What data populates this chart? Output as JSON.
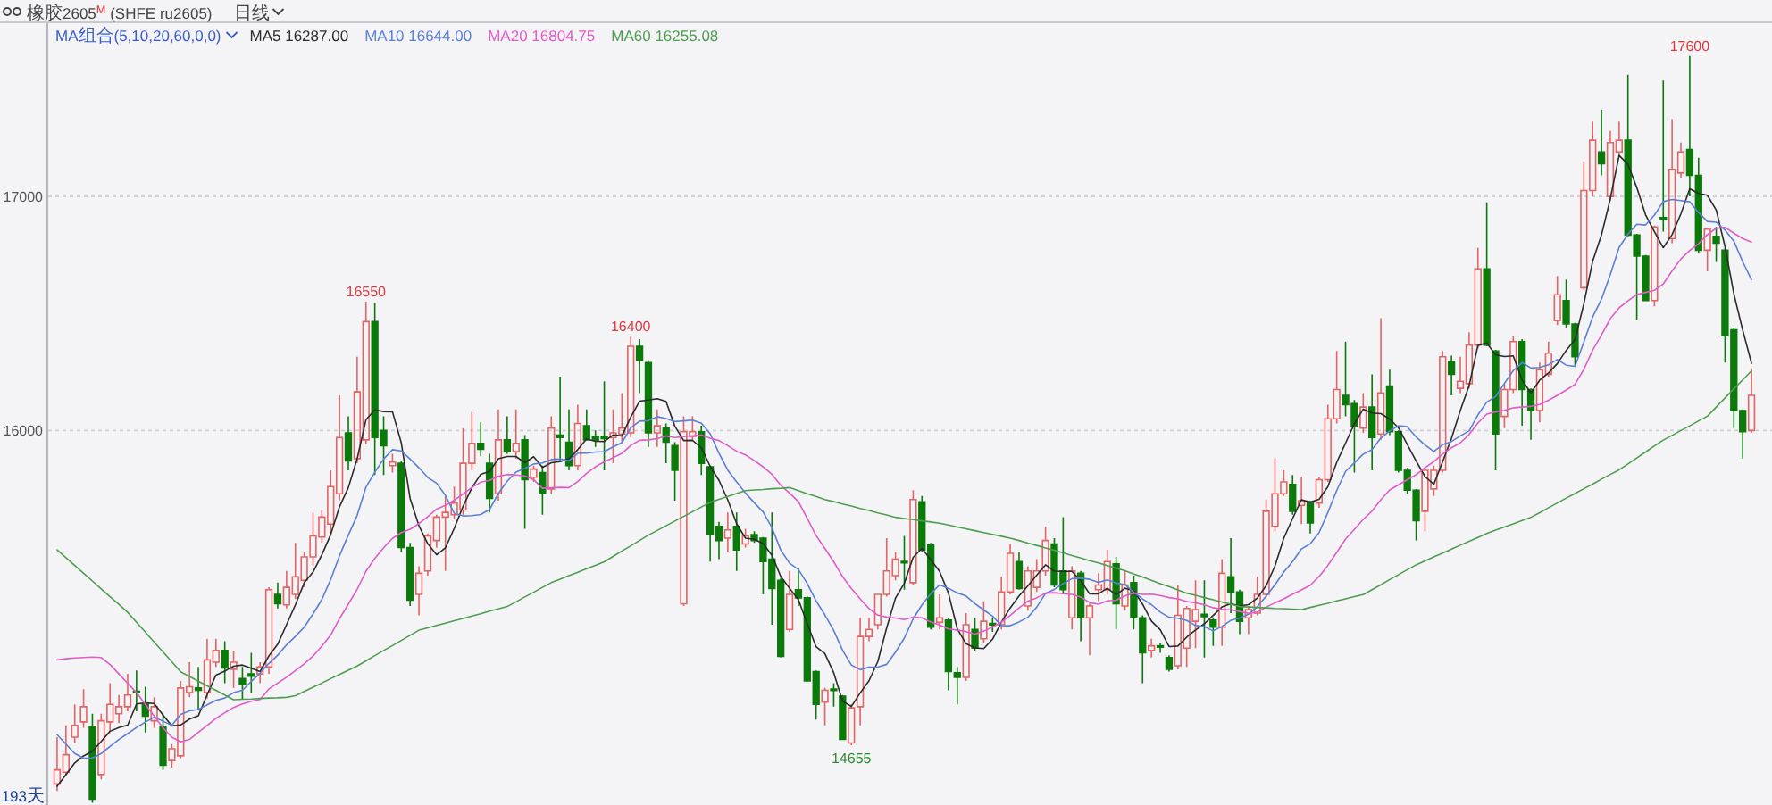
{
  "chart_data": {
    "type": "candlestick",
    "title": "橡胶2605$^{M}$ (SHFE ru2605)",
    "subtitle": "日线",
    "legend_title": "MA组合(5,10,20,60,0,0)",
    "legend": "top left",
    "grid": "y",
    "tick_labels": "y",
    "ylim": [
      14400,
      17740
    ],
    "yticks": [
      16000,
      17000
    ],
    "categories": [
      null,
      null,
      null,
      null,
      null,
      null,
      null,
      null,
      null,
      null,
      null,
      null,
      null,
      null,
      null,
      null,
      null,
      null,
      null,
      null,
      null,
      null,
      null,
      null,
      null,
      null,
      null,
      null,
      null,
      null,
      null,
      null,
      null,
      null,
      null,
      null,
      null,
      null,
      null,
      null,
      null,
      null,
      null,
      null,
      null,
      null,
      null,
      null,
      null,
      null,
      null,
      null,
      null,
      null,
      null,
      null,
      null,
      null,
      null,
      null,
      null,
      null,
      null,
      null,
      null,
      null,
      null,
      null,
      null,
      null,
      null,
      null,
      null,
      null,
      null,
      null,
      null,
      null,
      null,
      null,
      null,
      null,
      null,
      null,
      null,
      null,
      null,
      null,
      null,
      null,
      null,
      null,
      null,
      null,
      null,
      null,
      null,
      null,
      null,
      null,
      null,
      null,
      null,
      null,
      null,
      null,
      null,
      null,
      null,
      null,
      null,
      null,
      null,
      null,
      null,
      null,
      null,
      null,
      null,
      null,
      null,
      null,
      null,
      null,
      null,
      null,
      null,
      null,
      null,
      null,
      null,
      null,
      null,
      null,
      null,
      null,
      null,
      null,
      null,
      null,
      null,
      null,
      null,
      null,
      null,
      null,
      null,
      null,
      null,
      null,
      null,
      null,
      null,
      null,
      null,
      null,
      null,
      null,
      null,
      null,
      null,
      null,
      null,
      null,
      null,
      null,
      null,
      null,
      null,
      null,
      null,
      null,
      null,
      null,
      null,
      null,
      null,
      null,
      null,
      null,
      null,
      null,
      null,
      null,
      null,
      null,
      null,
      null,
      null,
      null,
      null,
      null,
      null
    ],
    "ohlc": [
      [
        14490,
        14690,
        14460,
        14550
      ],
      [
        14540,
        14740,
        14525,
        14615
      ],
      [
        14690,
        14830,
        14665,
        14740
      ],
      [
        14755,
        14895,
        14730,
        14820
      ],
      [
        14735,
        14790,
        14410,
        14425
      ],
      [
        14530,
        14790,
        14510,
        14760
      ],
      [
        14755,
        14920,
        14715,
        14830
      ],
      [
        14790,
        14870,
        14750,
        14820
      ],
      [
        14820,
        14960,
        14800,
        14870
      ],
      [
        14885,
        14975,
        14800,
        14880
      ],
      [
        14830,
        14905,
        14710,
        14780
      ],
      [
        14760,
        14860,
        14730,
        14820
      ],
      [
        14735,
        14790,
        14550,
        14570
      ],
      [
        14590,
        14660,
        14560,
        14640
      ],
      [
        14610,
        14930,
        14600,
        14900
      ],
      [
        14880,
        15010,
        14860,
        14905
      ],
      [
        14900,
        14990,
        14810,
        14890
      ],
      [
        14880,
        15110,
        14855,
        15020
      ],
      [
        15010,
        15110,
        14990,
        15060
      ],
      [
        15060,
        15100,
        14920,
        14985
      ],
      [
        14980,
        15060,
        14900,
        15010
      ],
      [
        14940,
        14990,
        14850,
        14915
      ],
      [
        14960,
        15050,
        14880,
        14950
      ],
      [
        14960,
        15010,
        14920,
        14990
      ],
      [
        14990,
        15330,
        14960,
        15320
      ],
      [
        15300,
        15350,
        15240,
        15260
      ],
      [
        15255,
        15400,
        15240,
        15330
      ],
      [
        15300,
        15520,
        15280,
        15375
      ],
      [
        15360,
        15480,
        15330,
        15460
      ],
      [
        15460,
        15650,
        15420,
        15550
      ],
      [
        15545,
        15660,
        15520,
        15630
      ],
      [
        15600,
        15830,
        15560,
        15760
      ],
      [
        15730,
        16150,
        15700,
        15970
      ],
      [
        15990,
        16060,
        15830,
        15870
      ],
      [
        15880,
        16315,
        15860,
        16165
      ],
      [
        15960,
        16550,
        15940,
        16465
      ],
      [
        16465,
        16545,
        15810,
        15970
      ],
      [
        16000,
        16060,
        15810,
        15935
      ],
      [
        15850,
        15900,
        15820,
        15865
      ],
      [
        15860,
        15870,
        15480,
        15500
      ],
      [
        15500,
        15520,
        15250,
        15275
      ],
      [
        15300,
        15420,
        15210,
        15390
      ],
      [
        15400,
        15560,
        15380,
        15550
      ],
      [
        15530,
        15640,
        15500,
        15630
      ],
      [
        15630,
        15720,
        15400,
        15650
      ],
      [
        15640,
        15760,
        15620,
        15690
      ],
      [
        15660,
        16010,
        15640,
        15860
      ],
      [
        15860,
        16080,
        15830,
        15945
      ],
      [
        15945,
        16035,
        15890,
        15920
      ],
      [
        15860,
        15900,
        15650,
        15710
      ],
      [
        15730,
        16090,
        15700,
        15960
      ],
      [
        15960,
        16060,
        15900,
        15910
      ],
      [
        15910,
        16090,
        15880,
        15945
      ],
      [
        15960,
        15980,
        15580,
        15790
      ],
      [
        15800,
        15850,
        15780,
        15835
      ],
      [
        15820,
        15850,
        15640,
        15730
      ],
      [
        15750,
        16060,
        15730,
        16010
      ],
      [
        15980,
        16230,
        15870,
        15970
      ],
      [
        15950,
        16090,
        15830,
        15850
      ],
      [
        15850,
        16110,
        15830,
        16030
      ],
      [
        16020,
        16090,
        15960,
        15960
      ],
      [
        15975,
        16000,
        15930,
        15960
      ],
      [
        15975,
        16210,
        15830,
        15965
      ],
      [
        15970,
        16090,
        15860,
        15990
      ],
      [
        15985,
        16160,
        15950,
        16010
      ],
      [
        15990,
        16400,
        15970,
        16360
      ],
      [
        16360,
        16390,
        16160,
        16300
      ],
      [
        16290,
        16300,
        15930,
        15990
      ],
      [
        15990,
        16090,
        15930,
        16020
      ],
      [
        16010,
        16030,
        15860,
        15950
      ],
      [
        15935,
        15950,
        15700,
        15830
      ],
      [
        15260,
        16060,
        15250,
        15995
      ],
      [
        15975,
        16060,
        15960,
        15995
      ],
      [
        15995,
        16020,
        15810,
        15860
      ],
      [
        15845,
        15850,
        15440,
        15555
      ],
      [
        15590,
        15610,
        15450,
        15530
      ],
      [
        15540,
        15650,
        15480,
        15575
      ],
      [
        15590,
        15650,
        15400,
        15490
      ],
      [
        15515,
        15580,
        15500,
        15550
      ],
      [
        15555,
        15570,
        15520,
        15530
      ],
      [
        15540,
        15545,
        15300,
        15440
      ],
      [
        15450,
        15650,
        15170,
        15325
      ],
      [
        15360,
        15370,
        15030,
        15035
      ],
      [
        15150,
        15400,
        15140,
        15300
      ],
      [
        15320,
        15410,
        15250,
        15285
      ],
      [
        15285,
        15290,
        14930,
        14930
      ],
      [
        14970,
        14975,
        14765,
        14830
      ],
      [
        14840,
        14900,
        14740,
        14890
      ],
      [
        14895,
        14920,
        14820,
        14890
      ],
      [
        14865,
        14870,
        14680,
        14680
      ],
      [
        14665,
        14830,
        14655,
        14815
      ],
      [
        14820,
        15200,
        14740,
        15120
      ],
      [
        15120,
        15200,
        15100,
        15150
      ],
      [
        15170,
        15300,
        15150,
        15300
      ],
      [
        15300,
        15540,
        15290,
        15400
      ],
      [
        15380,
        15480,
        15360,
        15450
      ],
      [
        15440,
        15550,
        15320,
        15435
      ],
      [
        15350,
        15745,
        15340,
        15705
      ],
      [
        15695,
        15720,
        15480,
        15490
      ],
      [
        15510,
        15520,
        15150,
        15160
      ],
      [
        15180,
        15300,
        15150,
        15200
      ],
      [
        15190,
        15200,
        14890,
        14970
      ],
      [
        14965,
        14990,
        14830,
        14945
      ],
      [
        14945,
        15220,
        14930,
        15170
      ],
      [
        15150,
        15200,
        15060,
        15070
      ],
      [
        15110,
        15270,
        15090,
        15185
      ],
      [
        15175,
        15200,
        15140,
        15170
      ],
      [
        15170,
        15375,
        15150,
        15310
      ],
      [
        15310,
        15515,
        15300,
        15475
      ],
      [
        15440,
        15480,
        15320,
        15325
      ],
      [
        15250,
        15420,
        15230,
        15400
      ],
      [
        15330,
        15450,
        15310,
        15400
      ],
      [
        15400,
        15590,
        15380,
        15530
      ],
      [
        15515,
        15540,
        15330,
        15340
      ],
      [
        15400,
        15630,
        15300,
        15320
      ],
      [
        15200,
        15420,
        15150,
        15400
      ],
      [
        15390,
        15400,
        15100,
        15200
      ],
      [
        15200,
        15260,
        15040,
        15250
      ],
      [
        15320,
        15390,
        15270,
        15340
      ],
      [
        15320,
        15490,
        15300,
        15440
      ],
      [
        15430,
        15460,
        15150,
        15260
      ],
      [
        15250,
        15400,
        15230,
        15340
      ],
      [
        15350,
        15380,
        15150,
        15200
      ],
      [
        15200,
        15210,
        14920,
        15050
      ],
      [
        15060,
        15110,
        15030,
        15080
      ],
      [
        15080,
        15090,
        15050,
        15075
      ],
      [
        15030,
        15040,
        14970,
        14980
      ],
      [
        14995,
        15340,
        14980,
        15210
      ],
      [
        15070,
        15250,
        14990,
        15240
      ],
      [
        15185,
        15360,
        15070,
        15235
      ],
      [
        15215,
        15360,
        15030,
        15205
      ],
      [
        15190,
        15200,
        15080,
        15160
      ],
      [
        15160,
        15450,
        15080,
        15390
      ],
      [
        15375,
        15540,
        15220,
        15310
      ],
      [
        15310,
        15320,
        15130,
        15185
      ],
      [
        15200,
        15250,
        15130,
        15235
      ],
      [
        15220,
        15375,
        15210,
        15300
      ],
      [
        15300,
        15705,
        15290,
        15655
      ],
      [
        15590,
        15880,
        15570,
        15730
      ],
      [
        15730,
        15830,
        15720,
        15780
      ],
      [
        15770,
        15810,
        15640,
        15655
      ],
      [
        15680,
        15800,
        15600,
        15700
      ],
      [
        15690,
        15700,
        15560,
        15605
      ],
      [
        15690,
        15800,
        15670,
        15790
      ],
      [
        15790,
        16110,
        15780,
        16050
      ],
      [
        16050,
        16340,
        16030,
        16175
      ],
      [
        16150,
        16380,
        16060,
        16110
      ],
      [
        16115,
        16130,
        15820,
        16020
      ],
      [
        16010,
        16160,
        15990,
        16100
      ],
      [
        16100,
        16240,
        15830,
        15970
      ],
      [
        15985,
        16480,
        15960,
        16160
      ],
      [
        16190,
        16260,
        15980,
        15995
      ],
      [
        15995,
        16000,
        15820,
        15830
      ],
      [
        15830,
        15840,
        15730,
        15745
      ],
      [
        15745,
        15750,
        15530,
        15615
      ],
      [
        15655,
        15830,
        15570,
        15830
      ],
      [
        15750,
        15850,
        15720,
        15830
      ],
      [
        15830,
        16340,
        15820,
        16315
      ],
      [
        16295,
        16320,
        16150,
        16240
      ],
      [
        16180,
        16315,
        16160,
        16210
      ],
      [
        16200,
        16420,
        16180,
        16365
      ],
      [
        16365,
        16780,
        16350,
        16690
      ],
      [
        16690,
        16975,
        16360,
        16365
      ],
      [
        16340,
        16345,
        15830,
        15985
      ],
      [
        16060,
        16200,
        16010,
        16175
      ],
      [
        16175,
        16405,
        16160,
        16380
      ],
      [
        16380,
        16390,
        16020,
        16175
      ],
      [
        16175,
        16180,
        15960,
        16085
      ],
      [
        16085,
        16290,
        16035,
        16260
      ],
      [
        16240,
        16380,
        16230,
        16330
      ],
      [
        16470,
        16660,
        16450,
        16580
      ],
      [
        16555,
        16645,
        16440,
        16455
      ],
      [
        16455,
        16460,
        16275,
        16315
      ],
      [
        16610,
        17150,
        16600,
        17025
      ],
      [
        17025,
        17320,
        17000,
        17240
      ],
      [
        17190,
        17370,
        17090,
        17140
      ],
      [
        17000,
        17280,
        16980,
        17230
      ],
      [
        17190,
        17320,
        17170,
        17240
      ],
      [
        17240,
        17520,
        16830,
        16835
      ],
      [
        16835,
        16840,
        16470,
        16745
      ],
      [
        16745,
        16750,
        16555,
        16555
      ],
      [
        16555,
        16875,
        16530,
        16870
      ],
      [
        16910,
        17495,
        16850,
        16900
      ],
      [
        16820,
        17330,
        16800,
        17115
      ],
      [
        17100,
        17230,
        17080,
        17190
      ],
      [
        17200,
        17600,
        17000,
        17090
      ],
      [
        17090,
        17165,
        16760,
        16770
      ],
      [
        16770,
        16860,
        16680,
        16860
      ],
      [
        16830,
        16870,
        16720,
        16800
      ],
      [
        16770,
        16780,
        16290,
        16405
      ],
      [
        16430,
        16440,
        16010,
        16085
      ],
      [
        16085,
        16090,
        15880,
        15995
      ],
      [
        16000,
        16265,
        15990,
        16150
      ]
    ],
    "series": [
      {
        "name": "MA5 16287.00",
        "type": "line",
        "color": "#2b2b2b",
        "values": [
          14480,
          14530,
          14580,
          14610,
          14630,
          14672,
          14715,
          14731,
          14741,
          14832,
          14836,
          14834,
          14784,
          14738,
          14742,
          14767,
          14781,
          14871,
          14955,
          14972,
          14993,
          14998,
          14984,
          14970,
          15037,
          15087,
          15170,
          15255,
          15349,
          15395,
          15469,
          15555,
          15674,
          15756,
          15879,
          16046,
          16088,
          16081,
          16080,
          15947,
          15709,
          15593,
          15516,
          15469,
          15499,
          15582,
          15676,
          15755,
          15813,
          15825,
          15879,
          15889,
          15889,
          15863,
          15888,
          15842,
          15862,
          15867,
          15879,
          15918,
          15964,
          15954,
          15953,
          15981,
          15977,
          16057,
          16125,
          16130,
          16136,
          16124,
          16018,
          15957,
          15958,
          15926,
          15847,
          15787,
          15703,
          15602,
          15540,
          15535,
          15517,
          15467,
          15376,
          15326,
          15277,
          15175,
          15076,
          15047,
          14965,
          14844,
          14821,
          14879,
          14931,
          15013,
          15157,
          15284,
          15347,
          15458,
          15496,
          15448,
          15398,
          15305,
          15153,
          15089,
          15071,
          15068,
          15108,
          15181,
          15242,
          15293,
          15336,
          15382,
          15426,
          15399,
          15398,
          15398,
          15358,
          15302,
          15302,
          15326,
          15298,
          15326,
          15316,
          15258,
          15186,
          15149,
          15077,
          15079,
          15117,
          15148,
          15174,
          15210,
          15246,
          15260,
          15250,
          15256,
          15284,
          15337,
          15421,
          15540,
          15624,
          15704,
          15694,
          15706,
          15760,
          15864,
          15946,
          16029,
          16091,
          16075,
          16072,
          16049,
          16011,
          15940,
          15869,
          15803,
          15770,
          15867,
          15966,
          16085,
          16192,
          16364,
          16374,
          16323,
          16316,
          16319,
          16216,
          16160,
          16215,
          16246,
          16286,
          16342,
          16388,
          16541,
          16723,
          16835,
          16990,
          17175,
          17137,
          17038,
          16921,
          16849,
          16781,
          16837,
          16926,
          17033,
          17013,
          17005,
          16942,
          16785,
          16584,
          16429,
          16287
        ]
      },
      {
        "name": "MA10 16644.00",
        "type": "line",
        "color": "#5b7fd6",
        "values": [
          14700,
          14660,
          14620,
          14600,
          14600,
          14620,
          14650,
          14680,
          14705,
          14731,
          14754,
          14775,
          14758,
          14740,
          14787,
          14802,
          14808,
          14828,
          14847,
          14857,
          14880,
          14890,
          14928,
          14963,
          15005,
          15040,
          15084,
          15120,
          15160,
          15216,
          15278,
          15363,
          15465,
          15553,
          15637,
          15758,
          15822,
          15878,
          15918,
          15913,
          15878,
          15841,
          15799,
          15775,
          15723,
          15646,
          15635,
          15636,
          15641,
          15662,
          15731,
          15783,
          15822,
          15838,
          15857,
          15861,
          15876,
          15878,
          15871,
          15903,
          15903,
          15908,
          15910,
          15930,
          15948,
          16011,
          16040,
          16042,
          16059,
          16051,
          16038,
          16041,
          16044,
          16031,
          15986,
          15903,
          15830,
          15780,
          15733,
          15691,
          15652,
          15585,
          15489,
          15433,
          15406,
          15346,
          15272,
          15212,
          15146,
          15061,
          14998,
          14978,
          14989,
          14989,
          15001,
          15053,
          15113,
          15195,
          15255,
          15303,
          15341,
          15326,
          15306,
          15293,
          15260,
          15233,
          15207,
          15167,
          15166,
          15182,
          15202,
          15245,
          15304,
          15321,
          15346,
          15367,
          15370,
          15364,
          15351,
          15362,
          15348,
          15342,
          15309,
          15280,
          15256,
          15224,
          15202,
          15198,
          15188,
          15167,
          15162,
          15144,
          15163,
          15189,
          15199,
          15215,
          15247,
          15292,
          15341,
          15395,
          15440,
          15494,
          15516,
          15564,
          15650,
          15744,
          15825,
          15862,
          15899,
          15918,
          15968,
          15998,
          16020,
          16016,
          15972,
          15938,
          15910,
          15939,
          15953,
          15977,
          15998,
          16067,
          16121,
          16145,
          16201,
          16256,
          16290,
          16267,
          16269,
          16281,
          16303,
          16279,
          16274,
          16378,
          16485,
          16561,
          16666,
          16782,
          16839,
          16881,
          16878,
          16920,
          16978,
          16987,
          16982,
          16977,
          16931,
          16893,
          16890,
          16856,
          16809,
          16721,
          16644
        ]
      },
      {
        "name": "MA20 16804.75",
        "type": "line",
        "color": "#e05cc8",
        "values": [
          15020,
          15025,
          15028,
          15030,
          15032,
          15030,
          15000,
          14960,
          14920,
          14880,
          14830,
          14780,
          14730,
          14690,
          14670,
          14680,
          14710,
          14740,
          14770,
          14794,
          14817,
          14832,
          14843,
          14851,
          14896,
          14921,
          14946,
          14974,
          15003,
          15036,
          15079,
          15126,
          15196,
          15258,
          15321,
          15399,
          15453,
          15499,
          15539,
          15564,
          15578,
          15602,
          15632,
          15664,
          15680,
          15702,
          15728,
          15757,
          15779,
          15787,
          15804,
          15812,
          15810,
          15806,
          15790,
          15753,
          15755,
          15757,
          15756,
          15782,
          15817,
          15845,
          15866,
          15884,
          15902,
          15936,
          15958,
          15960,
          15965,
          15977,
          15970,
          15974,
          15977,
          15980,
          15967,
          15957,
          15935,
          15911,
          15896,
          15871,
          15845,
          15813,
          15766,
          15732,
          15696,
          15624,
          15551,
          15496,
          15439,
          15376,
          15325,
          15281,
          15239,
          15211,
          15203,
          15199,
          15192,
          15203,
          15200,
          15182,
          15169,
          15152,
          15147,
          15141,
          15130,
          15143,
          15160,
          15181,
          15210,
          15242,
          15271,
          15285,
          15305,
          15307,
          15303,
          15300,
          15288,
          15265,
          15258,
          15272,
          15275,
          15293,
          15306,
          15300,
          15301,
          15295,
          15286,
          15281,
          15269,
          15264,
          15255,
          15243,
          15236,
          15234,
          15227,
          15219,
          15224,
          15245,
          15264,
          15281,
          15301,
          15319,
          15339,
          15376,
          15424,
          15479,
          15536,
          15577,
          15620,
          15656,
          15704,
          15746,
          15768,
          15790,
          15811,
          15841,
          15867,
          15900,
          15926,
          15947,
          15983,
          16032,
          16070,
          16080,
          16086,
          16097,
          16100,
          16103,
          16111,
          16129,
          16150,
          16173,
          16197,
          16261,
          16343,
          16408,
          16478,
          16524,
          16554,
          16581,
          16590,
          16599,
          16626,
          16682,
          16733,
          16769,
          16798,
          16837,
          16864,
          16868,
          16843,
          16820,
          16804.75
        ]
      },
      {
        "name": "MA60 16255.08",
        "type": "line",
        "color": "#4f9d4f",
        "values": [
          15490,
          15457,
          15423,
          15390,
          15357,
          15323,
          15290,
          15257,
          15223,
          15181,
          15139,
          15096,
          15054,
          15012,
          14969,
          14949,
          14929,
          14909,
          14890,
          14870,
          14850,
          14852,
          14853,
          14855,
          14857,
          14858,
          14860,
          14867,
          14885,
          14903,
          14921,
          14940,
          14958,
          14976,
          14994,
          15016,
          15038,
          15060,
          15081,
          15103,
          15125,
          15147,
          15157,
          15167,
          15177,
          15187,
          15197,
          15207,
          15217,
          15228,
          15238,
          15248,
          15268,
          15289,
          15309,
          15330,
          15350,
          15365,
          15380,
          15394,
          15409,
          15424,
          15439,
          15462,
          15485,
          15507,
          15530,
          15553,
          15573,
          15593,
          15613,
          15633,
          15653,
          15673,
          15693,
          15706,
          15718,
          15731,
          15743,
          15746,
          15748,
          15751,
          15753,
          15756,
          15743,
          15730,
          15718,
          15705,
          15696,
          15686,
          15677,
          15667,
          15658,
          15648,
          15639,
          15629,
          15624,
          15619,
          15614,
          15609,
          15604,
          15596,
          15588,
          15580,
          15572,
          15564,
          15556,
          15548,
          15540,
          15530,
          15519,
          15509,
          15498,
          15488,
          15477,
          15466,
          15455,
          15444,
          15434,
          15423,
          15412,
          15401,
          15387,
          15374,
          15360,
          15346,
          15333,
          15319,
          15305,
          15296,
          15286,
          15277,
          15267,
          15258,
          15248,
          15246,
          15244,
          15242,
          15240,
          15239,
          15237,
          15235,
          15244,
          15253,
          15262,
          15272,
          15281,
          15290,
          15299,
          15320,
          15341,
          15363,
          15384,
          15405,
          15426,
          15443,
          15460,
          15476,
          15493,
          15510,
          15527,
          15543,
          15560,
          15574,
          15588,
          15601,
          15615,
          15629,
          15649,
          15670,
          15690,
          15711,
          15731,
          15751,
          15771,
          15792,
          15812,
          15832,
          15857,
          15883,
          15908,
          15934,
          15959,
          15979,
          16000,
          16020,
          16041,
          16061,
          16100,
          16139,
          16178,
          16216,
          16255.08
        ]
      }
    ],
    "annotations": [
      "193天",
      {
        "text": "16550",
        "y": 16550
      },
      {
        "text": "16400",
        "y": 16400
      },
      {
        "text": "14655",
        "y": 14655
      },
      {
        "text": "17600",
        "y": 17600
      }
    ]
  }
}
